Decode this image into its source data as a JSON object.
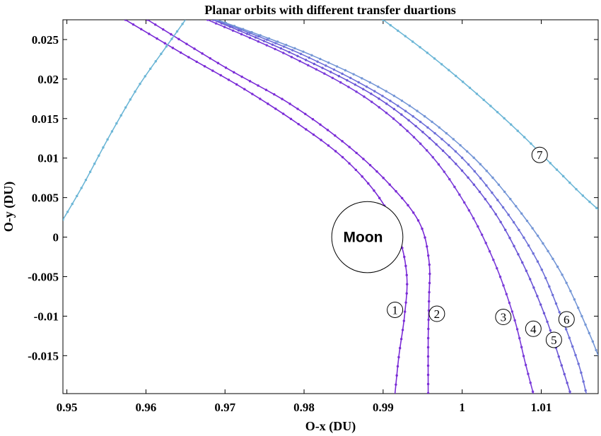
{
  "chart_data": {
    "type": "line",
    "title": "Planar orbits with different transfer duartions",
    "xlabel": "O-x (DU)",
    "ylabel": "O-y (DU)",
    "xlim": [
      0.9495,
      1.0172
    ],
    "ylim": [
      -0.0198,
      0.0275
    ],
    "xticks": [
      0.95,
      0.96,
      0.97,
      0.98,
      0.99,
      1.0,
      1.01
    ],
    "xtick_labels": [
      "0.95",
      "0.96",
      "0.97",
      "0.98",
      "0.99",
      "1",
      "1.01"
    ],
    "yticks": [
      0.025,
      0.02,
      0.015,
      0.01,
      0.005,
      0,
      -0.005,
      -0.01,
      -0.015
    ],
    "ytick_labels": [
      "0.025",
      "0.02",
      "0.015",
      "0.01",
      "0.005",
      "0",
      "-0.005",
      "-0.01",
      "-0.015"
    ],
    "grid": false,
    "moon": {
      "label": "Moon",
      "center": [
        0.988,
        0.0
      ],
      "radius": 0.0045
    },
    "series": [
      {
        "label": "1",
        "color": "#7a2bd6",
        "label_at": [
          0.9915,
          -0.0092
        ],
        "points": [
          [
            0.9574,
            0.0275
          ],
          [
            0.965,
            0.023
          ],
          [
            0.972,
            0.019
          ],
          [
            0.979,
            0.0145
          ],
          [
            0.985,
            0.01
          ],
          [
            0.9895,
            0.005
          ],
          [
            0.992,
            0.0
          ],
          [
            0.993,
            -0.005
          ],
          [
            0.9927,
            -0.01
          ],
          [
            0.992,
            -0.015
          ],
          [
            0.9915,
            -0.0198
          ]
        ]
      },
      {
        "label": "2",
        "color": "#7a2bd6",
        "label_at": [
          0.9968,
          -0.0097
        ],
        "points": [
          [
            0.9602,
            0.0275
          ],
          [
            0.97,
            0.0215
          ],
          [
            0.978,
            0.017
          ],
          [
            0.985,
            0.012
          ],
          [
            0.9905,
            0.007
          ],
          [
            0.9945,
            0.002
          ],
          [
            0.9958,
            -0.003
          ],
          [
            0.9958,
            -0.008
          ],
          [
            0.9957,
            -0.013
          ],
          [
            0.9957,
            -0.0198
          ]
        ]
      },
      {
        "label": "3",
        "color": "#7a3ad9",
        "label_at": [
          1.0052,
          -0.0101
        ],
        "points": [
          [
            0.9678,
            0.0275
          ],
          [
            0.978,
            0.023
          ],
          [
            0.988,
            0.0175
          ],
          [
            0.9955,
            0.011
          ],
          [
            1.0005,
            0.004
          ],
          [
            1.004,
            -0.003
          ],
          [
            1.0065,
            -0.01
          ],
          [
            1.008,
            -0.016
          ],
          [
            1.009,
            -0.0198
          ]
        ]
      },
      {
        "label": "4",
        "color": "#6b55d6",
        "label_at": [
          1.009,
          -0.0116
        ],
        "points": [
          [
            0.9685,
            0.0275
          ],
          [
            0.979,
            0.023
          ],
          [
            0.9895,
            0.0175
          ],
          [
            0.9975,
            0.011
          ],
          [
            1.0035,
            0.004
          ],
          [
            1.0075,
            -0.003
          ],
          [
            1.0105,
            -0.01
          ],
          [
            1.0125,
            -0.016
          ],
          [
            1.0137,
            -0.0198
          ]
        ]
      },
      {
        "label": "5",
        "color": "#6d6fd8",
        "label_at": [
          1.0116,
          -0.013
        ],
        "points": [
          [
            0.9688,
            0.0275
          ],
          [
            0.98,
            0.023
          ],
          [
            0.9905,
            0.0175
          ],
          [
            0.999,
            0.011
          ],
          [
            1.005,
            0.004
          ],
          [
            1.0095,
            -0.003
          ],
          [
            1.0125,
            -0.01
          ],
          [
            1.0147,
            -0.016
          ],
          [
            1.0157,
            -0.0198
          ]
        ]
      },
      {
        "label": "6",
        "color": "#7496d6",
        "label_at": [
          1.0132,
          -0.0104
        ],
        "points": [
          [
            0.969,
            0.0275
          ],
          [
            0.981,
            0.023
          ],
          [
            0.992,
            0.0175
          ],
          [
            1.001,
            0.0105
          ],
          [
            1.0075,
            0.003
          ],
          [
            1.0125,
            -0.0045
          ],
          [
            1.016,
            -0.012
          ],
          [
            1.0172,
            -0.015
          ]
        ]
      },
      {
        "label": "7",
        "color": "#6cb6d6",
        "label_at": [
          1.0098,
          0.0104
        ],
        "points": [
          [
            0.99,
            0.0275
          ],
          [
            0.996,
            0.023
          ],
          [
            1.002,
            0.018
          ],
          [
            1.0075,
            0.013
          ],
          [
            1.012,
            0.0085
          ],
          [
            1.015,
            0.0055
          ],
          [
            1.0172,
            0.0035
          ]
        ]
      },
      {
        "label": "",
        "color": "#6cb6d6",
        "label_at": null,
        "points": [
          [
            0.9495,
            0.0022
          ],
          [
            0.952,
            0.0065
          ],
          [
            0.9555,
            0.013
          ],
          [
            0.959,
            0.019
          ],
          [
            0.9625,
            0.024
          ],
          [
            0.965,
            0.0275
          ]
        ]
      }
    ]
  }
}
